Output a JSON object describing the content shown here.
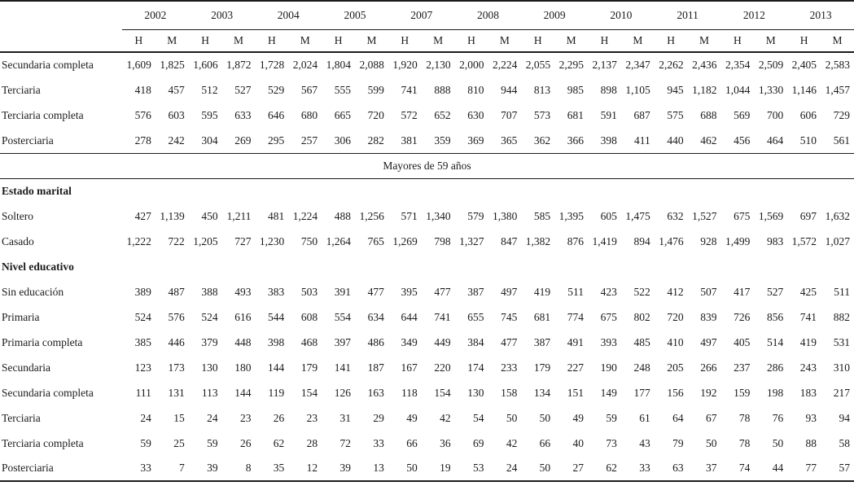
{
  "colors": {
    "text": "#1b1b1b",
    "rule": "#1b1b1b",
    "background": "#ffffff"
  },
  "table": {
    "years": [
      "2002",
      "2003",
      "2004",
      "2005",
      "2007",
      "2008",
      "2009",
      "2010",
      "2011",
      "2012",
      "2013"
    ],
    "sub_headers": [
      "H",
      "M"
    ],
    "band_label": "Mayores de 59 años",
    "rows": [
      {
        "kind": "data",
        "label": "Secundaria completa",
        "values": [
          "1,609",
          "1,825",
          "1,606",
          "1,872",
          "1,728",
          "2,024",
          "1,804",
          "2,088",
          "1,920",
          "2,130",
          "2,000",
          "2,224",
          "2,055",
          "2,295",
          "2,137",
          "2,347",
          "2,262",
          "2,436",
          "2,354",
          "2,509",
          "2,405",
          "2,583"
        ]
      },
      {
        "kind": "data",
        "label": "Terciaria",
        "values": [
          "418",
          "457",
          "512",
          "527",
          "529",
          "567",
          "555",
          "599",
          "741",
          "888",
          "810",
          "944",
          "813",
          "985",
          "898",
          "1,105",
          "945",
          "1,182",
          "1,044",
          "1,330",
          "1,146",
          "1,457"
        ]
      },
      {
        "kind": "data",
        "label": "Terciaria completa",
        "values": [
          "576",
          "603",
          "595",
          "633",
          "646",
          "680",
          "665",
          "720",
          "572",
          "652",
          "630",
          "707",
          "573",
          "681",
          "591",
          "687",
          "575",
          "688",
          "569",
          "700",
          "606",
          "729"
        ]
      },
      {
        "kind": "data",
        "label": "Posterciaria",
        "values": [
          "278",
          "242",
          "304",
          "269",
          "295",
          "257",
          "306",
          "282",
          "381",
          "359",
          "369",
          "365",
          "362",
          "366",
          "398",
          "411",
          "440",
          "462",
          "456",
          "464",
          "510",
          "561"
        ]
      },
      {
        "kind": "band",
        "label": "Mayores de 59 años"
      },
      {
        "kind": "group",
        "label": "Estado marital"
      },
      {
        "kind": "data",
        "label": "Soltero",
        "values": [
          "427",
          "1,139",
          "450",
          "1,211",
          "481",
          "1,224",
          "488",
          "1,256",
          "571",
          "1,340",
          "579",
          "1,380",
          "585",
          "1,395",
          "605",
          "1,475",
          "632",
          "1,527",
          "675",
          "1,569",
          "697",
          "1,632"
        ]
      },
      {
        "kind": "data",
        "label": "Casado",
        "values": [
          "1,222",
          "722",
          "1,205",
          "727",
          "1,230",
          "750",
          "1,264",
          "765",
          "1,269",
          "798",
          "1,327",
          "847",
          "1,382",
          "876",
          "1,419",
          "894",
          "1,476",
          "928",
          "1,499",
          "983",
          "1,572",
          "1,027"
        ]
      },
      {
        "kind": "group",
        "label": "Nivel educativo"
      },
      {
        "kind": "data",
        "label": "Sin educación",
        "values": [
          "389",
          "487",
          "388",
          "493",
          "383",
          "503",
          "391",
          "477",
          "395",
          "477",
          "387",
          "497",
          "419",
          "511",
          "423",
          "522",
          "412",
          "507",
          "417",
          "527",
          "425",
          "511"
        ]
      },
      {
        "kind": "data",
        "label": "Primaria",
        "values": [
          "524",
          "576",
          "524",
          "616",
          "544",
          "608",
          "554",
          "634",
          "644",
          "741",
          "655",
          "745",
          "681",
          "774",
          "675",
          "802",
          "720",
          "839",
          "726",
          "856",
          "741",
          "882"
        ]
      },
      {
        "kind": "data",
        "label": "Primaria completa",
        "values": [
          "385",
          "446",
          "379",
          "448",
          "398",
          "468",
          "397",
          "486",
          "349",
          "449",
          "384",
          "477",
          "387",
          "491",
          "393",
          "485",
          "410",
          "497",
          "405",
          "514",
          "419",
          "531"
        ]
      },
      {
        "kind": "data",
        "label": "Secundaria",
        "values": [
          "123",
          "173",
          "130",
          "180",
          "144",
          "179",
          "141",
          "187",
          "167",
          "220",
          "174",
          "233",
          "179",
          "227",
          "190",
          "248",
          "205",
          "266",
          "237",
          "286",
          "243",
          "310"
        ]
      },
      {
        "kind": "data",
        "label": "Secundaria completa",
        "values": [
          "111",
          "131",
          "113",
          "144",
          "119",
          "154",
          "126",
          "163",
          "118",
          "154",
          "130",
          "158",
          "134",
          "151",
          "149",
          "177",
          "156",
          "192",
          "159",
          "198",
          "183",
          "217"
        ]
      },
      {
        "kind": "data",
        "label": "Terciaria",
        "values": [
          "24",
          "15",
          "24",
          "23",
          "26",
          "23",
          "31",
          "29",
          "49",
          "42",
          "54",
          "50",
          "50",
          "49",
          "59",
          "61",
          "64",
          "67",
          "78",
          "76",
          "93",
          "94"
        ]
      },
      {
        "kind": "data",
        "label": "Terciaria completa",
        "values": [
          "59",
          "25",
          "59",
          "26",
          "62",
          "28",
          "72",
          "33",
          "66",
          "36",
          "69",
          "42",
          "66",
          "40",
          "73",
          "43",
          "79",
          "50",
          "78",
          "50",
          "88",
          "58"
        ]
      },
      {
        "kind": "data",
        "label": "Posterciaria",
        "values": [
          "33",
          "7",
          "39",
          "8",
          "35",
          "12",
          "39",
          "13",
          "50",
          "19",
          "53",
          "24",
          "50",
          "27",
          "62",
          "33",
          "63",
          "37",
          "74",
          "44",
          "77",
          "57"
        ]
      }
    ]
  }
}
